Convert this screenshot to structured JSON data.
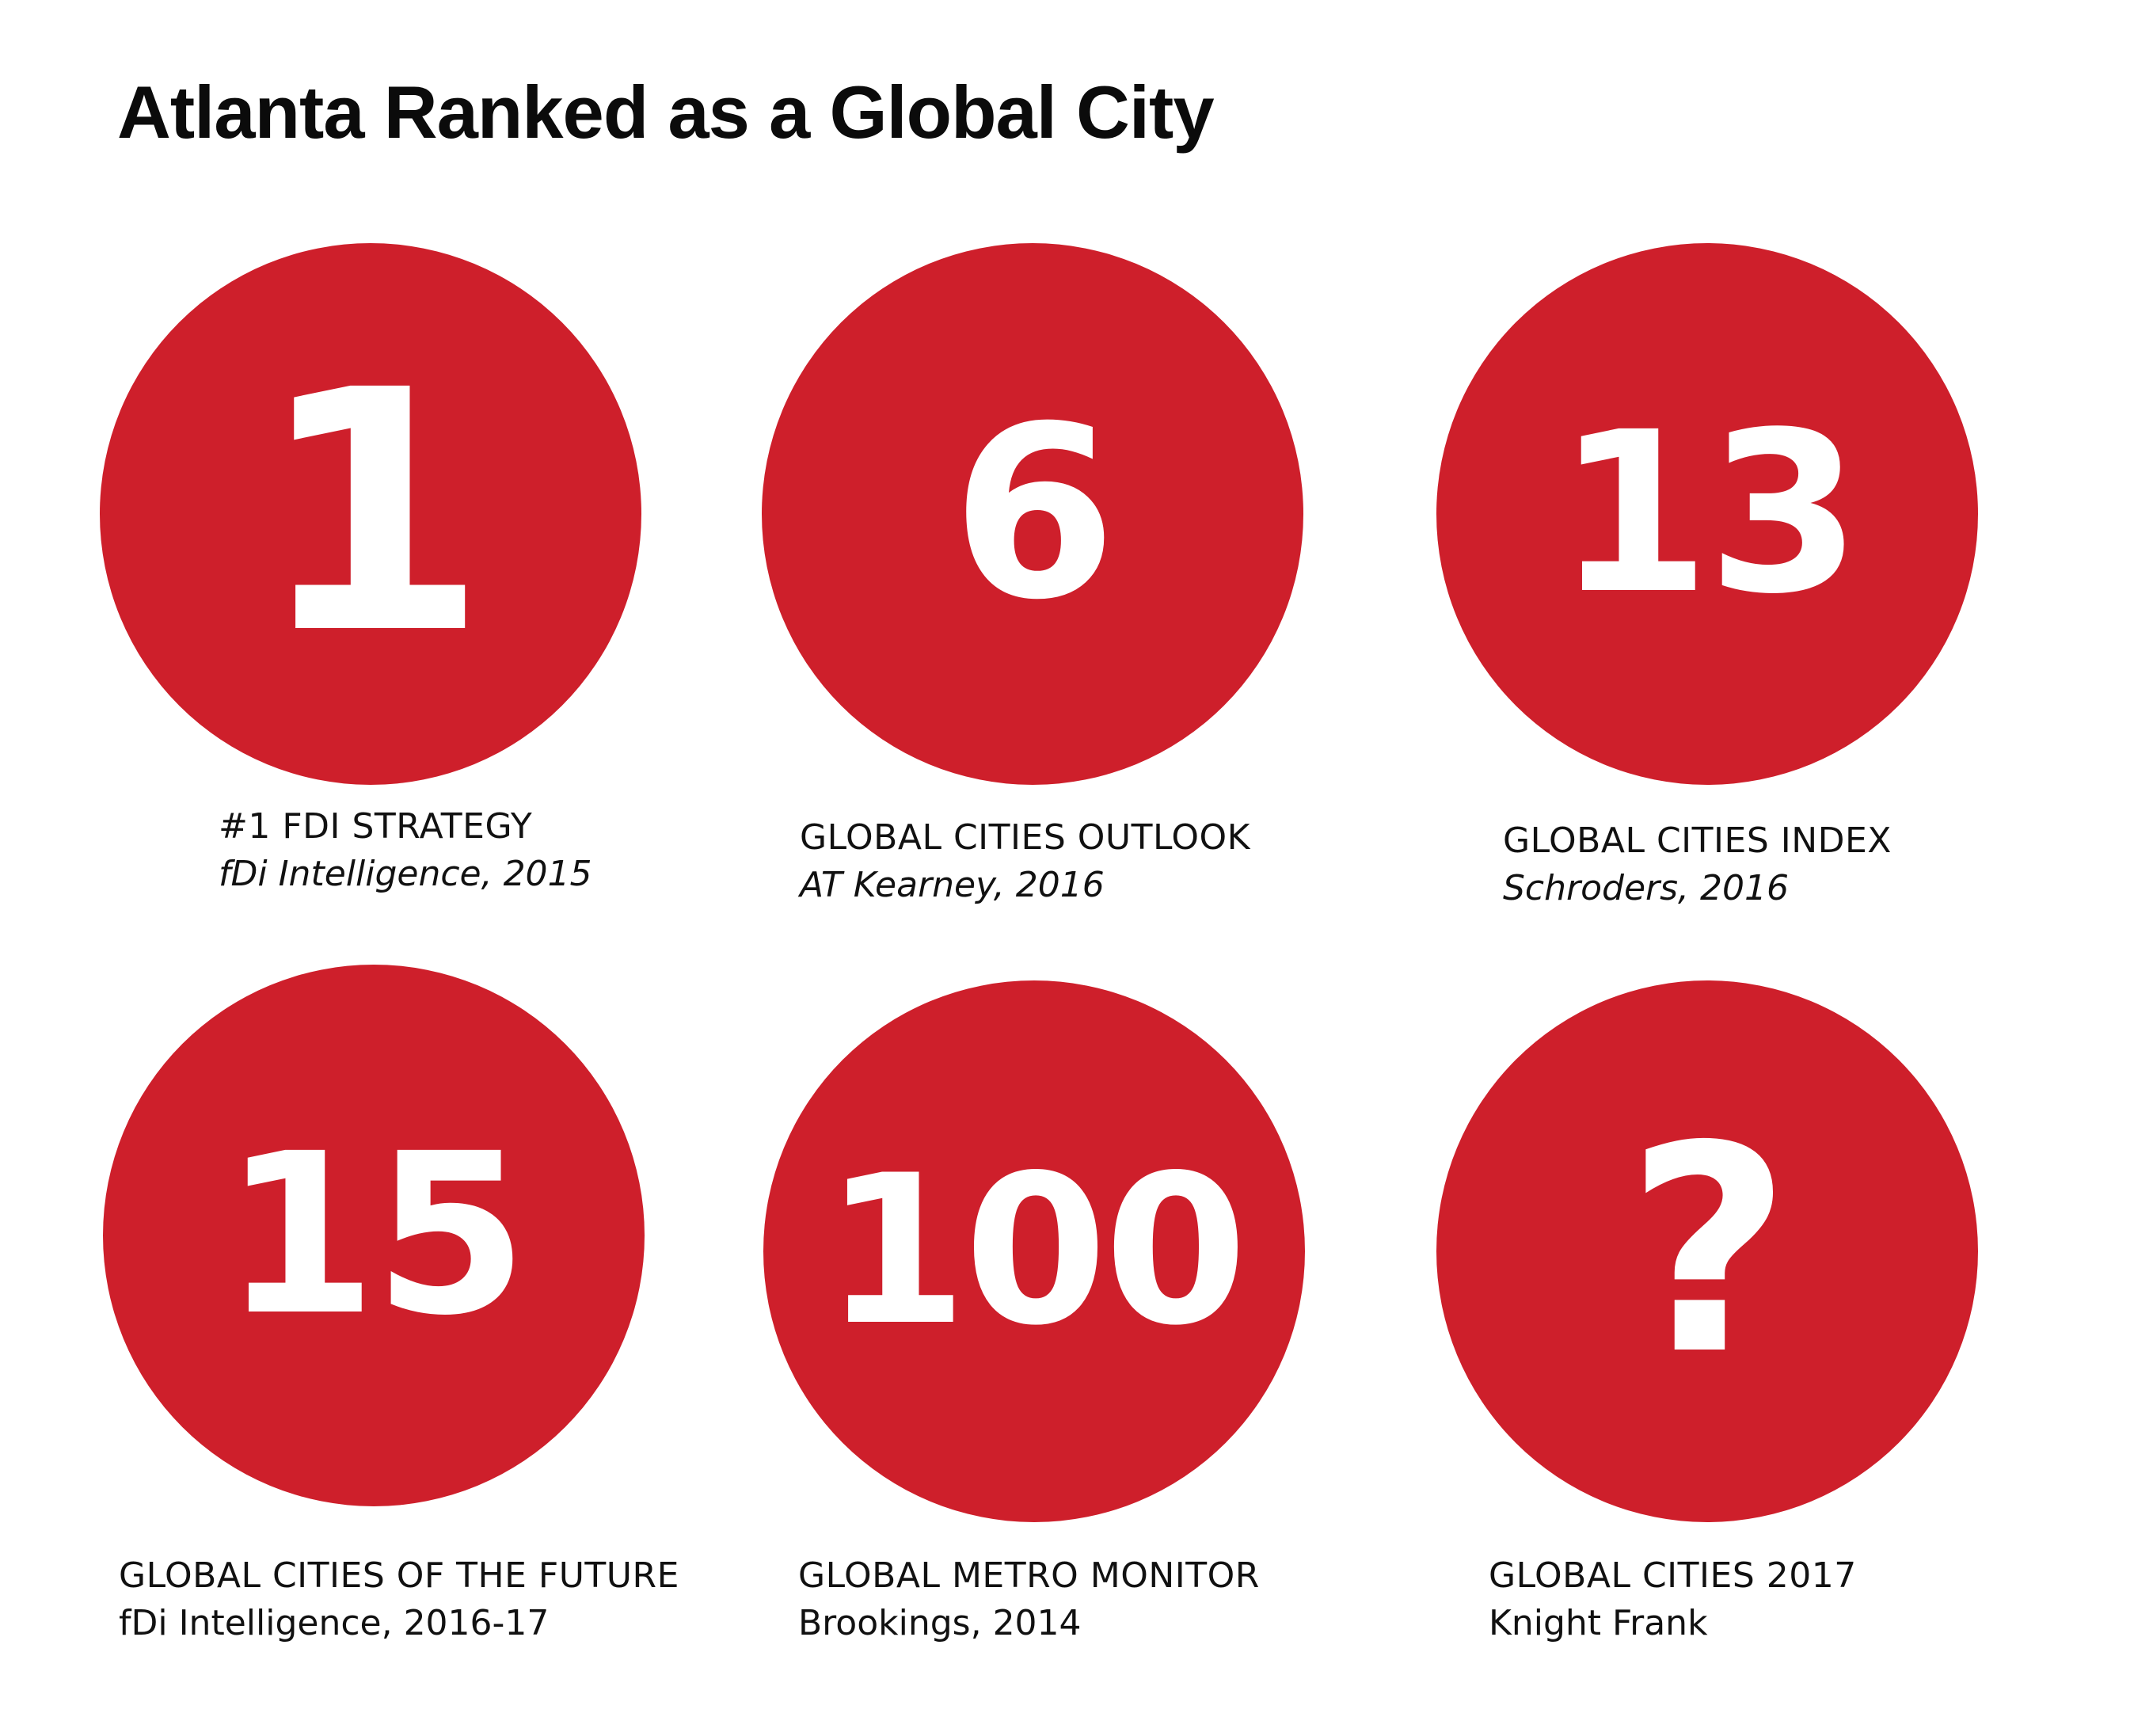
{
  "page": {
    "title": "Atlanta Ranked as a Global City"
  },
  "colors": {
    "circle": "#ce1f2b",
    "rank_text": "#ffffff",
    "text": "#111111"
  },
  "rankings": [
    {
      "rank": "1",
      "title": "#1 FDI STRATEGY",
      "source": "fDi Intelligence, 2015",
      "source_italic": true
    },
    {
      "rank": "6",
      "title": "GLOBAL CITIES OUTLOOK",
      "source": "AT Kearney, 2016",
      "source_italic": true
    },
    {
      "rank": "13",
      "title": "GLOBAL CITIES INDEX",
      "source": "Schroders, 2016",
      "source_italic": true
    },
    {
      "rank": "15",
      "title": "GLOBAL CITIES OF THE FUTURE",
      "source": "fDi Intelligence, 2016-17",
      "source_italic": false
    },
    {
      "rank": "100",
      "title": "GLOBAL METRO MONITOR",
      "source": "Brookings, 2014",
      "source_italic": false
    },
    {
      "rank": "?",
      "title": "GLOBAL CITIES 2017",
      "source": "Knight Frank",
      "source_italic": false
    }
  ]
}
